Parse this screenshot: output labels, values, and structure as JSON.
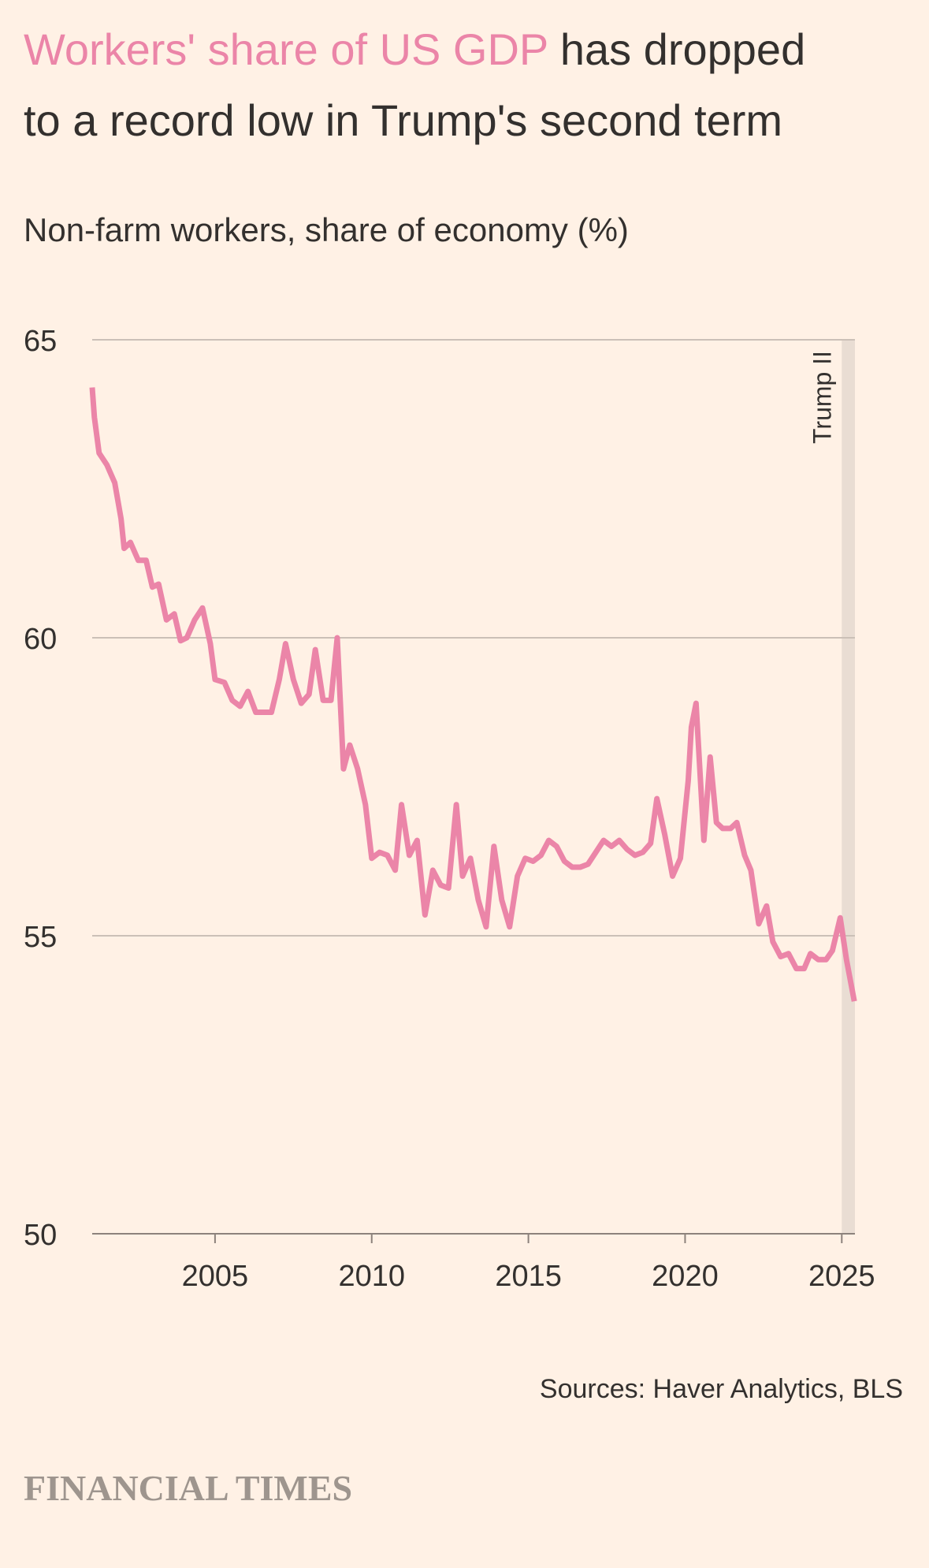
{
  "chart_data": {
    "type": "line",
    "title": {
      "highlight": "Workers' share of US GDP",
      "lines": [
        "has dropped",
        "to a record low in Trump's second term"
      ]
    },
    "subtitle": "Non-farm workers, share of economy (%)",
    "x": [
      2001.08,
      2001.15,
      2001.3,
      2001.55,
      2001.8,
      2002.0,
      2002.1,
      2002.3,
      2002.55,
      2002.8,
      2003.0,
      2003.2,
      2003.45,
      2003.7,
      2003.9,
      2004.1,
      2004.35,
      2004.6,
      2004.85,
      2005.0,
      2005.3,
      2005.55,
      2005.8,
      2006.05,
      2006.3,
      2006.55,
      2006.8,
      2007.05,
      2007.25,
      2007.5,
      2007.75,
      2008.0,
      2008.2,
      2008.45,
      2008.7,
      2008.9,
      2009.1,
      2009.3,
      2009.55,
      2009.8,
      2010.0,
      2010.25,
      2010.5,
      2010.75,
      2010.95,
      2011.2,
      2011.45,
      2011.7,
      2011.95,
      2012.2,
      2012.45,
      2012.7,
      2012.9,
      2013.15,
      2013.4,
      2013.65,
      2013.9,
      2014.15,
      2014.4,
      2014.65,
      2014.9,
      2015.15,
      2015.4,
      2015.65,
      2015.9,
      2016.15,
      2016.4,
      2016.65,
      2016.9,
      2017.15,
      2017.4,
      2017.65,
      2017.9,
      2018.15,
      2018.4,
      2018.65,
      2018.9,
      2019.1,
      2019.35,
      2019.6,
      2019.85,
      2020.1,
      2020.2,
      2020.35,
      2020.6,
      2020.8,
      2021.0,
      2021.2,
      2021.45,
      2021.65,
      2021.9,
      2022.1,
      2022.35,
      2022.6,
      2022.8,
      2023.05,
      2023.3,
      2023.55,
      2023.8,
      2024.0,
      2024.25,
      2024.5,
      2024.7,
      2024.95,
      2025.15,
      2025.4
    ],
    "values": [
      64.2,
      63.7,
      63.1,
      62.9,
      62.6,
      62.0,
      61.5,
      61.6,
      61.3,
      61.3,
      60.85,
      60.9,
      60.3,
      60.4,
      59.95,
      60.0,
      60.3,
      60.5,
      59.9,
      59.3,
      59.25,
      58.95,
      58.85,
      59.1,
      58.75,
      58.75,
      58.75,
      59.3,
      59.9,
      59.3,
      58.9,
      59.05,
      59.8,
      58.95,
      58.95,
      60.0,
      57.8,
      58.2,
      57.8,
      57.2,
      56.3,
      56.4,
      56.35,
      56.1,
      57.2,
      56.35,
      56.6,
      55.35,
      56.1,
      55.85,
      55.8,
      57.2,
      56.0,
      56.3,
      55.6,
      55.15,
      56.5,
      55.6,
      55.15,
      56.0,
      56.3,
      56.25,
      56.35,
      56.6,
      56.5,
      56.25,
      56.15,
      56.15,
      56.2,
      56.4,
      56.6,
      56.5,
      56.6,
      56.45,
      56.35,
      56.4,
      56.55,
      57.3,
      56.7,
      56.0,
      56.3,
      57.6,
      58.5,
      58.9,
      56.6,
      58.0,
      56.9,
      56.8,
      56.8,
      56.9,
      56.35,
      56.1,
      55.2,
      55.5,
      54.9,
      54.65,
      54.7,
      54.45,
      54.45,
      54.7,
      54.6,
      54.6,
      54.75,
      55.3,
      54.6,
      53.9
    ],
    "color": "#eb85a8",
    "xlim": [
      2001.08,
      2025.42
    ],
    "xticks": [
      2005,
      2010,
      2015,
      2020,
      2025
    ],
    "ylim": [
      50,
      65
    ],
    "yticks": [
      50,
      55,
      60,
      65
    ],
    "grid": true,
    "annotation": {
      "label": "Trump II",
      "x": 2025.0
    },
    "source": "Sources: Haver Analytics, BLS",
    "branding": "FINANCIAL TIMES"
  }
}
